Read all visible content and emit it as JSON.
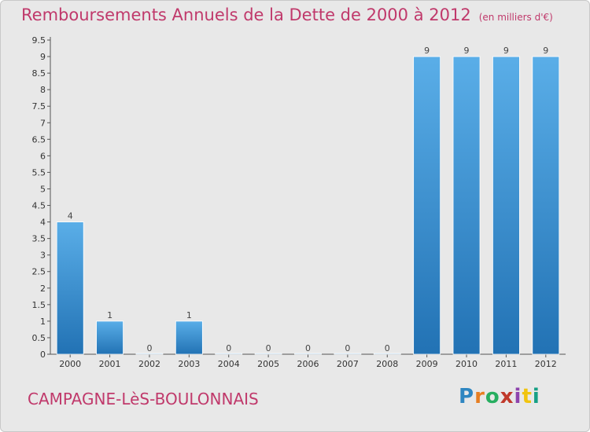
{
  "header": {
    "title": "Remboursements Annuels de la Dette de 2000 à 2012",
    "unit": "(en milliers d'€)"
  },
  "footer": {
    "commune": "CAMPAGNE-LèS-BOULONNAIS",
    "logo_text": "Proxiti"
  },
  "colors": {
    "title": "#c0396b",
    "bar_top": "#5aaee8",
    "bar_bottom": "#2272b4",
    "background": "#e8e8e8",
    "logo": [
      "#2e86c1",
      "#e67e22",
      "#27ae60",
      "#c0392b",
      "#8e44ad",
      "#f1c40f",
      "#16a085"
    ]
  },
  "chart_data": {
    "type": "bar",
    "title": "Remboursements Annuels de la Dette de 2000 à 2012",
    "xlabel": "",
    "ylabel": "(en milliers d'€)",
    "categories": [
      "2000",
      "2001",
      "2002",
      "2003",
      "2004",
      "2005",
      "2006",
      "2007",
      "2008",
      "2009",
      "2010",
      "2011",
      "2012"
    ],
    "values": [
      4,
      1,
      0,
      1,
      0,
      0,
      0,
      0,
      0,
      9,
      9,
      9,
      9
    ],
    "ylim": [
      0,
      9.5
    ],
    "yticks": [
      0,
      0.5,
      1,
      1.5,
      2,
      2.5,
      3,
      3.5,
      4,
      4.5,
      5,
      5.5,
      6,
      6.5,
      7,
      7.5,
      8,
      8.5,
      9,
      9.5
    ],
    "ytick_labels": [
      "0",
      "0.5",
      "1",
      "1.5",
      "2",
      "2.5",
      "3",
      "3.5",
      "4",
      "4.5",
      "5",
      "5.5",
      "6",
      "6.5",
      "7",
      "7.5",
      "8",
      "8.5",
      "9",
      "9.5"
    ],
    "grid": false,
    "legend": "none"
  }
}
